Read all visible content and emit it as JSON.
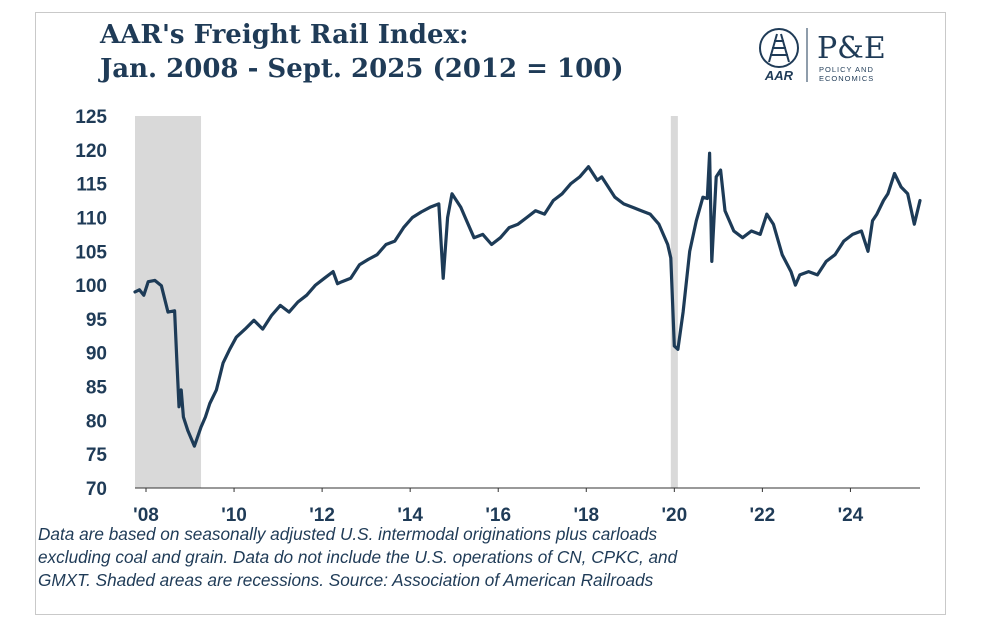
{
  "title": {
    "line1": "AAR's Freight Rail Index:",
    "line2": "Jan. 2008 - Sept. 2025 (2012 = 100)"
  },
  "logo": {
    "aar_text": "AAR",
    "pe_text": "P&E",
    "pe_sub1": "POLICY AND",
    "pe_sub2": "ECONOMICS",
    "icon": "railroad-track-icon"
  },
  "colors": {
    "line": "#1d3b57",
    "text": "#1f3b57",
    "recession": "#d9d9d9",
    "axis": "#333333"
  },
  "footnote": {
    "line1": "Data are based on seasonally adjusted U.S. intermodal originations plus carloads",
    "line2": "excluding coal and grain. Data do not include the U.S. operations of CN, CPKC, and",
    "line3": "GMXT. Shaded areas are recessions. Source: Association of American Railroads"
  },
  "chart_data": {
    "type": "line",
    "title": "AAR's Freight Rail Index: Jan. 2008 - Sept. 2025 (2012 = 100)",
    "xlabel": "",
    "ylabel": "",
    "xlim": [
      2008.0,
      2025.83
    ],
    "ylim": [
      70,
      125
    ],
    "grid": false,
    "legend": "none",
    "yticks": [
      70,
      75,
      80,
      85,
      90,
      95,
      100,
      105,
      110,
      115,
      120,
      125
    ],
    "xticks": [
      {
        "x": 2008.25,
        "label": "'08"
      },
      {
        "x": 2010.25,
        "label": "'10"
      },
      {
        "x": 2012.25,
        "label": "'12"
      },
      {
        "x": 2014.25,
        "label": "'14"
      },
      {
        "x": 2016.25,
        "label": "'16"
      },
      {
        "x": 2018.25,
        "label": "'18"
      },
      {
        "x": 2020.25,
        "label": "'20"
      },
      {
        "x": 2022.25,
        "label": "'22"
      },
      {
        "x": 2024.25,
        "label": "'24"
      }
    ],
    "recessions": [
      {
        "start": 2008.0,
        "end": 2009.5
      },
      {
        "start": 2020.17,
        "end": 2020.33
      }
    ],
    "series": [
      {
        "name": "",
        "x": [
          2008.0,
          2008.1,
          2008.2,
          2008.3,
          2008.45,
          2008.6,
          2008.75,
          2008.9,
          2008.95,
          2009.0,
          2009.05,
          2009.1,
          2009.2,
          2009.35,
          2009.5,
          2009.6,
          2009.7,
          2009.85,
          2010.0,
          2010.15,
          2010.3,
          2010.5,
          2010.7,
          2010.9,
          2011.1,
          2011.3,
          2011.5,
          2011.7,
          2011.9,
          2012.1,
          2012.3,
          2012.5,
          2012.6,
          2012.7,
          2012.9,
          2013.1,
          2013.3,
          2013.5,
          2013.7,
          2013.9,
          2014.1,
          2014.3,
          2014.5,
          2014.7,
          2014.9,
          2015.0,
          2015.1,
          2015.2,
          2015.3,
          2015.4,
          2015.5,
          2015.7,
          2015.9,
          2016.1,
          2016.3,
          2016.5,
          2016.7,
          2016.9,
          2017.1,
          2017.3,
          2017.5,
          2017.7,
          2017.9,
          2018.1,
          2018.3,
          2018.5,
          2018.6,
          2018.7,
          2018.9,
          2019.1,
          2019.3,
          2019.5,
          2019.7,
          2019.9,
          2020.0,
          2020.1,
          2020.17,
          2020.25,
          2020.33,
          2020.45,
          2020.6,
          2020.75,
          2020.9,
          2021.0,
          2021.05,
          2021.1,
          2021.2,
          2021.3,
          2021.4,
          2021.6,
          2021.8,
          2022.0,
          2022.2,
          2022.35,
          2022.5,
          2022.7,
          2022.9,
          2023.0,
          2023.1,
          2023.3,
          2023.5,
          2023.7,
          2023.9,
          2024.1,
          2024.3,
          2024.5,
          2024.65,
          2024.75,
          2024.85,
          2025.0,
          2025.1,
          2025.25,
          2025.4,
          2025.55,
          2025.7,
          2025.83
        ],
        "values": [
          99.0,
          99.3,
          98.5,
          100.5,
          100.7,
          99.9,
          96.0,
          96.2,
          89.0,
          82.0,
          84.5,
          80.5,
          78.5,
          76.2,
          79.0,
          80.5,
          82.5,
          84.5,
          88.5,
          90.5,
          92.3,
          93.5,
          94.8,
          93.5,
          95.5,
          97.0,
          96.0,
          97.5,
          98.5,
          100.0,
          101.0,
          102.0,
          100.2,
          100.5,
          101.0,
          103.0,
          103.8,
          104.5,
          106.0,
          106.5,
          108.5,
          110.0,
          110.8,
          111.5,
          112.0,
          101.0,
          110.0,
          113.5,
          112.5,
          111.5,
          110.0,
          107.0,
          107.5,
          106.0,
          107.0,
          108.5,
          109.0,
          110.0,
          111.0,
          110.5,
          112.5,
          113.5,
          115.0,
          116.0,
          117.5,
          115.5,
          116.0,
          115.0,
          113.0,
          112.0,
          111.5,
          111.0,
          110.5,
          109.0,
          107.5,
          106.0,
          104.0,
          91.0,
          90.5,
          96.0,
          105.0,
          109.5,
          113.0,
          112.8,
          119.5,
          103.5,
          116.0,
          117.0,
          111.0,
          108.0,
          107.0,
          108.0,
          107.5,
          110.5,
          109.0,
          104.5,
          102.0,
          100.0,
          101.5,
          102.0,
          101.5,
          103.5,
          104.5,
          106.5,
          107.5,
          108.0,
          105.0,
          109.5,
          110.5,
          112.5,
          113.5,
          116.5,
          114.5,
          113.5,
          109.0,
          112.5
        ]
      }
    ]
  }
}
